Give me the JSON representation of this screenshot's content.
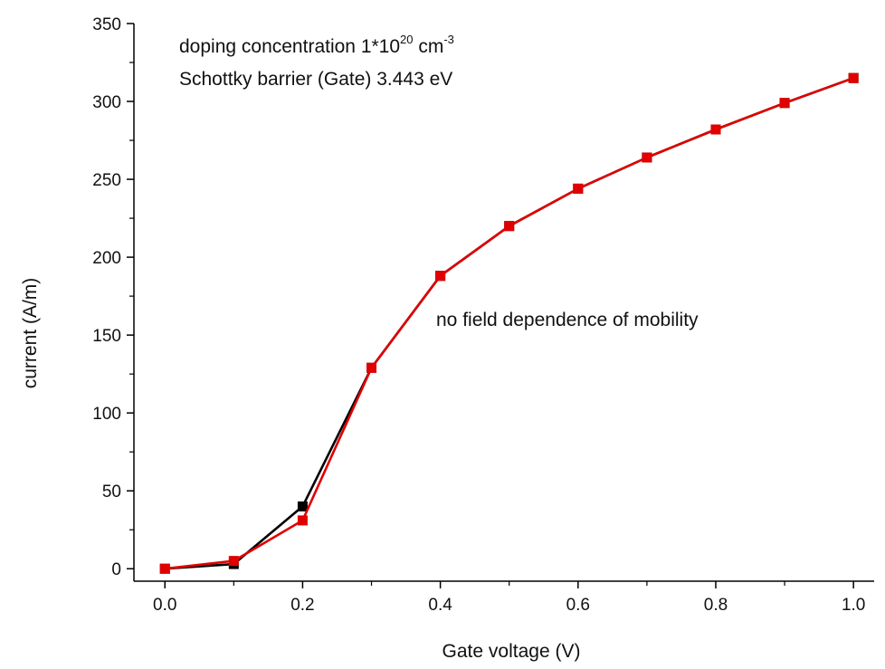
{
  "chart_data": {
    "type": "line",
    "xlabel": "Gate voltage (V)",
    "ylabel": "current (A/m)",
    "xlim": [
      -0.045,
      1.03
    ],
    "ylim": [
      -8,
      350
    ],
    "xticks": [
      "0.0",
      "0.2",
      "0.4",
      "0.6",
      "0.8",
      "1.0"
    ],
    "yticks": [
      "0",
      "50",
      "100",
      "150",
      "200",
      "250",
      "300",
      "350"
    ],
    "grid": false,
    "x": [
      0.0,
      0.1,
      0.2,
      0.3,
      0.4,
      0.5,
      0.6,
      0.7,
      0.8,
      0.9,
      1.0
    ],
    "series": [
      {
        "color": "#000000",
        "marker": "square",
        "values": [
          0,
          3,
          40,
          129,
          188,
          220,
          244,
          264,
          282,
          299,
          315
        ]
      },
      {
        "color": "#e00000",
        "marker": "square",
        "values": [
          0,
          5,
          31,
          129,
          188,
          220,
          244,
          264,
          282,
          299,
          315
        ]
      }
    ],
    "annotations": {
      "line1_prefix": "doping concentration 1*10",
      "line1_exp": "20",
      "line1_unit": " cm",
      "line1_unit_exp": "-3",
      "line2": "Schottky barrier (Gate) 3.443 eV",
      "line3": "no field dependence of mobility"
    }
  }
}
